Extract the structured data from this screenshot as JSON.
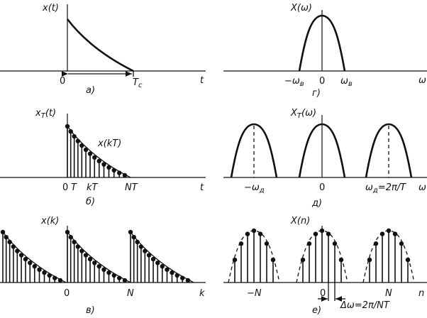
{
  "panels": {
    "a": {
      "ylabel": "x(t)",
      "origin": "0",
      "tc": "T",
      "tc_sub": "c",
      "xlabel": "t",
      "caption": "а)"
    },
    "b": {
      "ylabel": "x",
      "ylabel_sub": "T",
      "ylabel_tail": "(t)",
      "sample_label": "x(kT)",
      "tick0": "0",
      "tickT": "T",
      "tickkT": "kT",
      "tickNT": "NT",
      "xlabel": "t",
      "caption": "б)"
    },
    "c": {
      "ylabel": "x(k)",
      "tick0": "0",
      "tickN": "N",
      "xlabel": "k",
      "caption": "в)"
    },
    "d": {
      "ylabel": "X(ω)",
      "neg": "−ω",
      "neg_sub": "в",
      "zero": "0",
      "pos": "ω",
      "pos_sub": "в",
      "xlabel": "ω",
      "caption": "г)"
    },
    "e": {
      "ylabel": "X",
      "ylabel_sub": "T",
      "ylabel_tail": "(ω)",
      "neg": "−ω",
      "neg_sub": "д",
      "zero": "0",
      "pos": "ω",
      "pos_sub": "д",
      "pos_tail": "=2π/T",
      "xlabel": "ω",
      "caption": "д)"
    },
    "f": {
      "ylabel": "X(n)",
      "neg": "−N",
      "zero": "0",
      "pos": "N",
      "xlabel": "n",
      "delta": "Δω=2π/NT",
      "caption": "е)"
    }
  }
}
